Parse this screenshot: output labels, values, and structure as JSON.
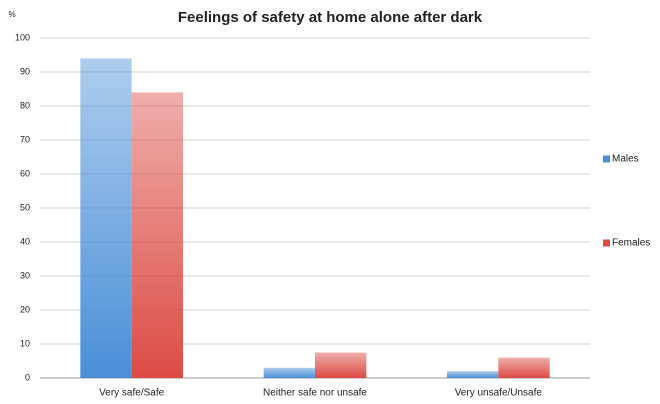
{
  "chart_data": {
    "type": "bar",
    "title": "Feelings of safety at home alone after dark",
    "y_label": "%",
    "categories": [
      "Very safe/Safe",
      "Neither safe nor unsafe",
      "Very unsafe/Unsafe"
    ],
    "series": [
      {
        "name": "Males",
        "color": "#4a8fd8",
        "values": [
          94,
          3,
          2
        ]
      },
      {
        "name": "Females",
        "color": "#dc4b44",
        "values": [
          84,
          7.5,
          6
        ]
      }
    ],
    "ylim": [
      0,
      100
    ],
    "yticks": [
      0,
      10,
      20,
      30,
      40,
      50,
      60,
      70,
      80,
      90,
      100
    ],
    "grid": true,
    "legend": "right"
  }
}
